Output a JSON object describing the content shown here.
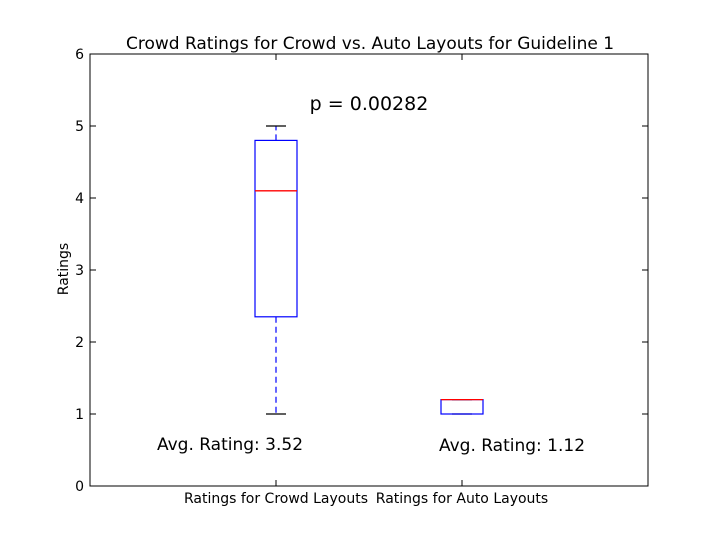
{
  "chart_data": {
    "type": "box",
    "title": "Crowd Ratings for Crowd vs. Auto Layouts for Guideline 1",
    "xlabel": "",
    "ylabel": "Ratings",
    "ylim": [
      0,
      6
    ],
    "yticks": [
      "0",
      "1",
      "2",
      "3",
      "4",
      "5",
      "6"
    ],
    "categories": [
      "Ratings for Crowd Layouts",
      "Ratings for Auto Layouts"
    ],
    "boxes": [
      {
        "whisker_low": 1.0,
        "q1": 2.35,
        "median": 4.1,
        "q3": 4.8,
        "whisker_high": 5.0
      },
      {
        "whisker_low": 1.0,
        "q1": 1.0,
        "median": 1.2,
        "q3": 1.2,
        "whisker_high": 1.2
      }
    ],
    "annotations": [
      "Avg. Rating: 3.52",
      "Avg. Rating: 1.12"
    ],
    "p_value_label": "p = 0.00282",
    "colors": {
      "box": "#0000ff",
      "median": "#ff0000",
      "whisker": "#0000ff",
      "cap": "#000000",
      "axes": "#000000"
    },
    "grid": false
  }
}
